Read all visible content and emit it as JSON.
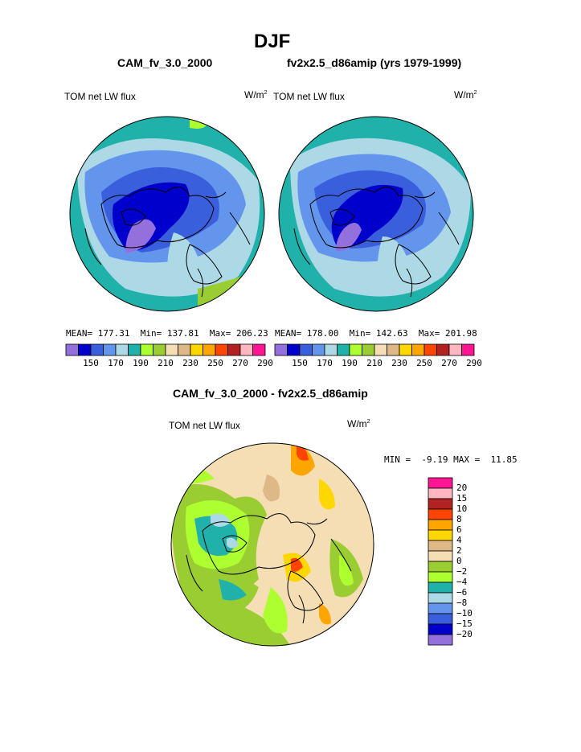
{
  "page": {
    "season_title": "DJF",
    "panel_left_title": "CAM_fv_3.0_2000",
    "panel_right_title": "fv2x2.5_d86amip (yrs 1979-1999)",
    "diff_title": "CAM_fv_3.0_2000 - fv2x2.5_d86amip"
  },
  "panels": [
    {
      "variable": "TOM net LW flux",
      "units": "W/m",
      "units_exp": "2",
      "mean_label": "MEAN=",
      "mean_value": "177.31",
      "min_label": "Min=",
      "min_value": "137.81",
      "max_label": "Max=",
      "max_value": "206.23"
    },
    {
      "variable": "TOM net LW flux",
      "units": "W/m",
      "units_exp": "2",
      "mean_label": "MEAN=",
      "mean_value": "178.00",
      "min_label": "Min=",
      "min_value": "142.63",
      "max_label": "Max=",
      "max_value": "201.98"
    }
  ],
  "diff_panel": {
    "variable": "TOM net LW flux",
    "units": "W/m",
    "units_exp": "2",
    "min_label": "MIN =",
    "min_value": "-9.19",
    "max_label": "MAX =",
    "max_value": "11.85"
  },
  "colorbar_abs": {
    "colors": [
      "#9370db",
      "#0000cd",
      "#3a5fdc",
      "#6495ed",
      "#add8e6",
      "#20b2aa",
      "#adff2f",
      "#9acd32",
      "#f5deb3",
      "#deb887",
      "#ffd700",
      "#ffa500",
      "#ff4500",
      "#b22222",
      "#ffb6c1",
      "#ff1493"
    ],
    "labels": [
      "150",
      "170",
      "190",
      "210",
      "230",
      "250",
      "270",
      "290"
    ]
  },
  "colorbar_diff": {
    "colors": [
      "#ff1493",
      "#ffb6c1",
      "#b22222",
      "#ff4500",
      "#ffa500",
      "#ffd700",
      "#deb887",
      "#f5deb3",
      "#9acd32",
      "#adff2f",
      "#20b2aa",
      "#add8e6",
      "#6495ed",
      "#3a5fdc",
      "#0000cd",
      "#9370db"
    ],
    "labels": [
      "20",
      "15",
      "10",
      "8",
      "6",
      "4",
      "2",
      "0",
      "−2",
      "−4",
      "−6",
      "−8",
      "−10",
      "−15",
      "−20"
    ]
  },
  "map_colors": {
    "teal": "#20b2aa",
    "lightblue": "#add8e6",
    "cornflower": "#6495ed",
    "royal": "#3a5fdc",
    "dark": "#0000cd",
    "purple": "#9370db",
    "green": "#9acd32",
    "lightgreen": "#adff2f",
    "wheat": "#f5deb3",
    "tan": "#deb887",
    "gold": "#ffd700",
    "orange": "#ffa500",
    "red": "#ff4500"
  }
}
